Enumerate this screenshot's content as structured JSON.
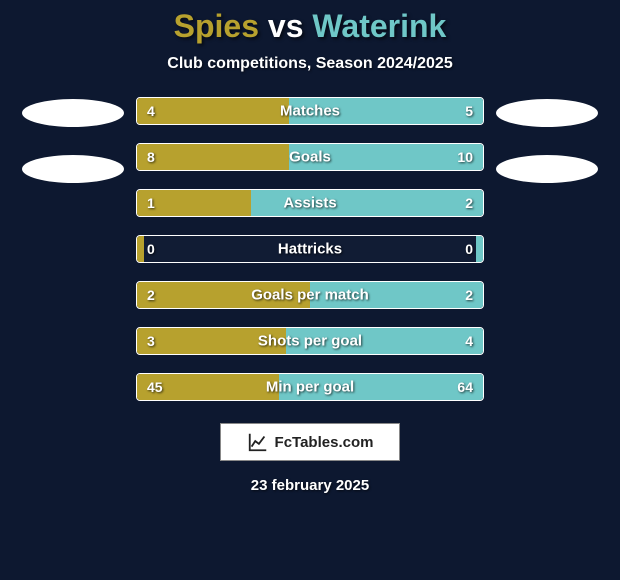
{
  "title": {
    "player1": "Spies",
    "vs": "vs",
    "player2": "Waterink",
    "color1": "#b7a12e",
    "color_vs": "#ffffff",
    "color2": "#6fc7c7"
  },
  "subtitle": "Club competitions, Season 2024/2025",
  "background_color": "#0d1830",
  "bar_colors": {
    "left": "#b7a12e",
    "right": "#6fc7c7"
  },
  "bars": [
    {
      "label": "Matches",
      "left_val": "4",
      "right_val": "5",
      "left_pct": 44,
      "right_pct": 56
    },
    {
      "label": "Goals",
      "left_val": "8",
      "right_val": "10",
      "left_pct": 44,
      "right_pct": 56
    },
    {
      "label": "Assists",
      "left_val": "1",
      "right_val": "2",
      "left_pct": 33,
      "right_pct": 67
    },
    {
      "label": "Hattricks",
      "left_val": "0",
      "right_val": "0",
      "left_pct": 2,
      "right_pct": 2
    },
    {
      "label": "Goals per match",
      "left_val": "2",
      "right_val": "2",
      "left_pct": 50,
      "right_pct": 50
    },
    {
      "label": "Shots per goal",
      "left_val": "3",
      "right_val": "4",
      "left_pct": 43,
      "right_pct": 57
    },
    {
      "label": "Min per goal",
      "left_val": "45",
      "right_val": "64",
      "left_pct": 41,
      "right_pct": 59
    }
  ],
  "side_ovals": {
    "bg": "#ffffff"
  },
  "watermark": "FcTables.com",
  "date": "23 february 2025"
}
